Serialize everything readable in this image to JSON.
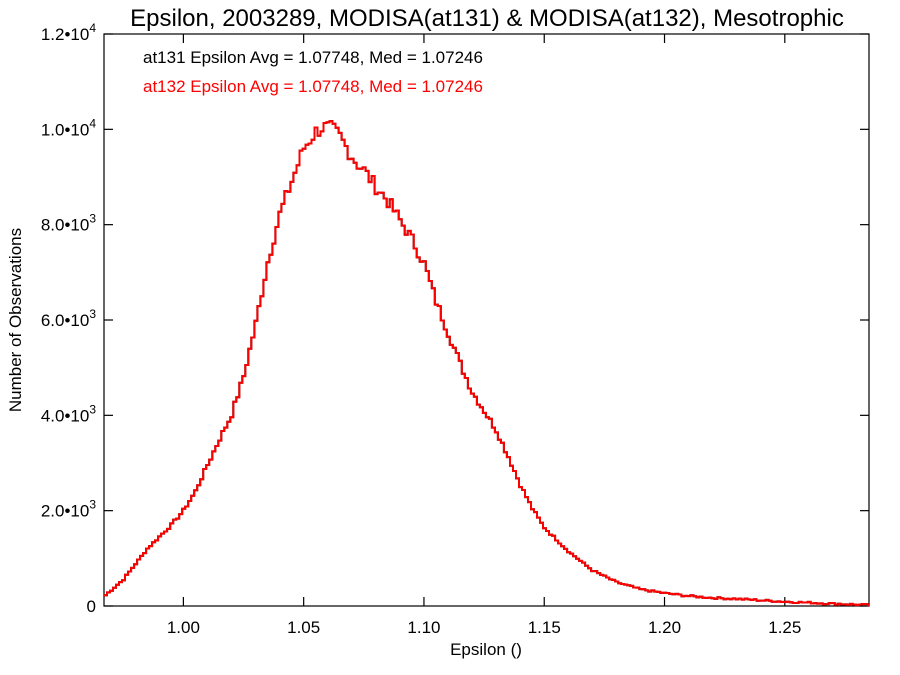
{
  "chart_data": {
    "type": "step",
    "title": "Epsilon, 2003289, MODISA(at131) & MODISA(at132), Mesotrophic",
    "xlabel": "Epsilon ()",
    "ylabel": "Number of Observations",
    "xlim": [
      0.967,
      1.285
    ],
    "ylim": [
      0,
      12000
    ],
    "xticks": [
      {
        "value": 1.0,
        "label": "1.00"
      },
      {
        "value": 1.05,
        "label": "1.05"
      },
      {
        "value": 1.1,
        "label": "1.10"
      },
      {
        "value": 1.15,
        "label": "1.15"
      },
      {
        "value": 1.2,
        "label": "1.20"
      },
      {
        "value": 1.25,
        "label": "1.25"
      }
    ],
    "yticks": [
      {
        "value": 0,
        "mantissa": "0",
        "exponent": ""
      },
      {
        "value": 2000,
        "mantissa": "2.0•10",
        "exponent": "3"
      },
      {
        "value": 4000,
        "mantissa": "4.0•10",
        "exponent": "3"
      },
      {
        "value": 6000,
        "mantissa": "6.0•10",
        "exponent": "3"
      },
      {
        "value": 8000,
        "mantissa": "8.0•10",
        "exponent": "3"
      },
      {
        "value": 10000,
        "mantissa": "1.0•10",
        "exponent": "4"
      },
      {
        "value": 12000,
        "mantissa": "1.2•10",
        "exponent": "4"
      }
    ],
    "annotations": [
      {
        "text": "at131 Epsilon Avg = 1.07748, Med = 1.07246",
        "color": "#000000"
      },
      {
        "text": "at132 Epsilon Avg = 1.07748, Med = 1.07246",
        "color": "#ff0000"
      }
    ],
    "series": [
      {
        "name": "at131",
        "color": "#000000"
      },
      {
        "name": "at132",
        "color": "#ff0000"
      }
    ],
    "x": [
      0.967,
      0.975,
      0.985,
      0.995,
      1.0,
      1.005,
      1.01,
      1.015,
      1.02,
      1.025,
      1.03,
      1.035,
      1.04,
      1.045,
      1.05,
      1.055,
      1.058,
      1.062,
      1.065,
      1.068,
      1.072,
      1.075,
      1.08,
      1.085,
      1.09,
      1.095,
      1.1,
      1.105,
      1.11,
      1.115,
      1.12,
      1.125,
      1.13,
      1.135,
      1.14,
      1.145,
      1.15,
      1.16,
      1.17,
      1.18,
      1.19,
      1.2,
      1.21,
      1.22,
      1.23,
      1.24,
      1.25,
      1.26,
      1.27,
      1.28,
      1.285
    ],
    "y": [
      200,
      550,
      1200,
      1700,
      2000,
      2400,
      2950,
      3500,
      4000,
      4800,
      5900,
      7200,
      8200,
      8900,
      9600,
      9950,
      10050,
      10000,
      9850,
      9600,
      9300,
      9150,
      8800,
      8500,
      8100,
      7700,
      7200,
      6400,
      5750,
      5100,
      4500,
      4100,
      3700,
      3150,
      2550,
      2050,
      1650,
      1150,
      750,
      500,
      350,
      270,
      210,
      170,
      150,
      120,
      90,
      70,
      50,
      30,
      20
    ]
  }
}
